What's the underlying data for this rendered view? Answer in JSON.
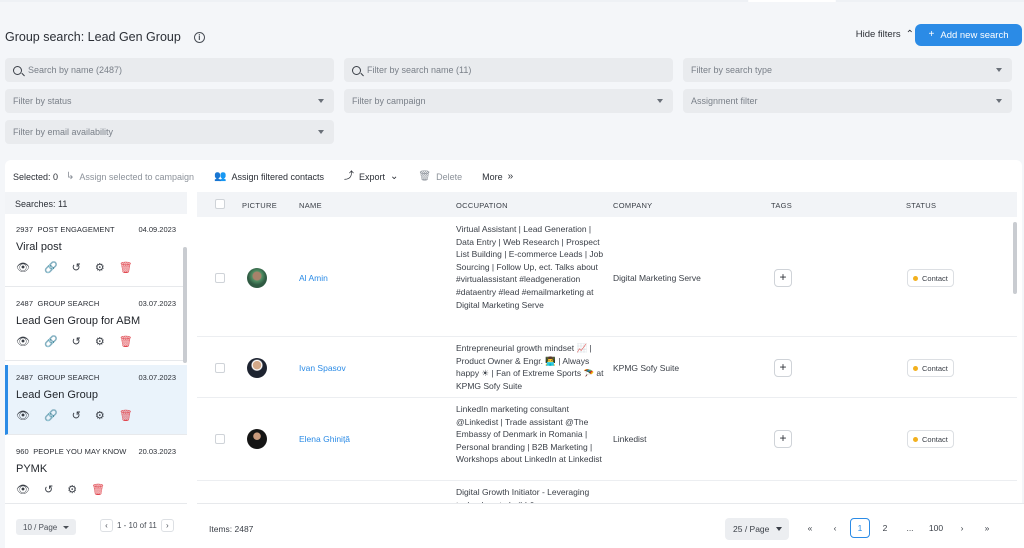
{
  "header": {
    "title": "Group search: Lead Gen Group",
    "hide_filters": "Hide filters",
    "add_new_search": "Add new search"
  },
  "filters": {
    "search_by_name": "Search by name (2487)",
    "filter_by_search_name": "Filter by search name (11)",
    "filter_by_search_type": "Filter by search type",
    "filter_by_status": "Filter by status",
    "filter_by_campaign": "Filter by campaign",
    "assignment_filter": "Assignment filter",
    "filter_by_email": "Filter by email availability"
  },
  "toolbar": {
    "selected": "Selected: 0",
    "assign_selected": "Assign selected to campaign",
    "assign_filtered": "Assign filtered contacts",
    "export": "Export",
    "delete": "Delete",
    "more": "More"
  },
  "sidebar": {
    "searches": "Searches:  11",
    "groups": [
      {
        "count": "2937",
        "type": "POST ENGAGEMENT",
        "date": "04.09.2023",
        "name": "Viral post"
      },
      {
        "count": "2487",
        "type": "GROUP SEARCH",
        "date": "03.07.2023",
        "name": "Lead Gen Group for ABM"
      },
      {
        "count": "2487",
        "type": "GROUP SEARCH",
        "date": "03.07.2023",
        "name": "Lead Gen Group"
      },
      {
        "count": "960",
        "type": "PEOPLE YOU MAY KNOW",
        "date": "20.03.2023",
        "name": "PYMK"
      }
    ],
    "per_page": "10 / Page",
    "range": "1 - 10 of 11"
  },
  "table": {
    "columns": {
      "picture": "PICTURE",
      "name": "NAME",
      "occupation": "OCCUPATION",
      "company": "COMPANY",
      "tags": "TAGS",
      "status": "STATUS"
    },
    "rows": [
      {
        "name": "Al Amin",
        "occupation": "Virtual Assistant | Lead Generation | Data Entry | Web Research | Prospect List Building | E-commerce Leads | Job Sourcing | Follow Up, ect. Talks about #virtualassistant #leadgeneration #dataentry #lead #emailmarketing at Digital Marketing Serve",
        "company": "Digital Marketing Serve",
        "tag_add": "+",
        "status": "Contact"
      },
      {
        "name": "Ivan Spasov",
        "occupation": "Entrepreneurial growth mindset 📈 | Product Owner & Engr. 👨‍💻 | Always happy ☀ | Fan of Extreme Sports 🪂 at KPMG Sofy Suite",
        "company": "KPMG Sofy Suite",
        "tag_add": "+",
        "status": "Contact"
      },
      {
        "name": "Elena Ghiniță",
        "occupation": "LinkedIn marketing consultant @Linkedist | Trade assistant @The Embassy of Denmark in Romania | Personal branding | B2B Marketing | Workshops about LinkedIn at Linkedist",
        "company": "Linkedist",
        "tag_add": "+",
        "status": "Contact"
      },
      {
        "name": "",
        "occupation": "Digital Growth Initiator - Leveraging technology to build &",
        "company": "",
        "tag_add": "",
        "status": ""
      }
    ]
  },
  "footer": {
    "items": "Items: 2487",
    "per_page": "25 / Page",
    "pages": [
      "1",
      "2",
      "...",
      "100"
    ]
  }
}
